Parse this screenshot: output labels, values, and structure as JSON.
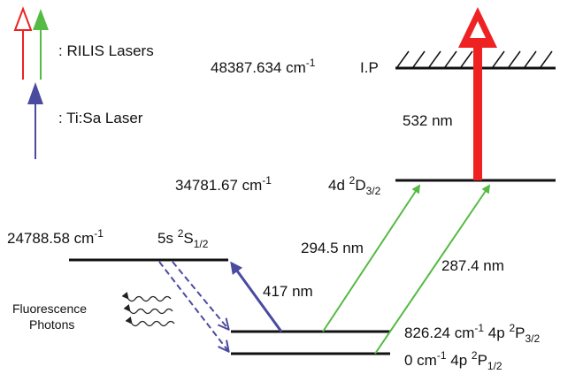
{
  "colors": {
    "rilis_red": "#ee2222",
    "rilis_green": "#55bb44",
    "tisa_blue": "#4a4aa0",
    "level_black": "#111111"
  },
  "legend": {
    "rilis_label": ": RILIS Lasers",
    "tisa_label": ": Ti:Sa Laser"
  },
  "levels": {
    "ip": {
      "energy": "48387.634 cm",
      "exp": "-1",
      "state": "I.P"
    },
    "d": {
      "energy": "34781.67 cm",
      "exp": "-1",
      "config": "4d ",
      "sup": "2",
      "term": "D",
      "sub": "3/2"
    },
    "s": {
      "energy": "24788.58 cm",
      "exp": "-1",
      "config": "5s ",
      "sup": "2",
      "term": "S",
      "sub": "1/2"
    },
    "p32": {
      "energy": "826.24 cm",
      "exp": "-1",
      "config": "4p ",
      "sup": "2",
      "term": "P",
      "sub": "3/2"
    },
    "p12": {
      "energy": "0 cm",
      "exp": "-1",
      "config": "4p ",
      "sup": "2",
      "term": "P",
      "sub": "1/2"
    }
  },
  "transitions": {
    "t532": "532 nm",
    "t2945": "294.5 nm",
    "t2874": "287.4 nm",
    "t417": "417 nm"
  },
  "fluorescence": {
    "line1": "Fluorescence",
    "line2": "Photons"
  }
}
